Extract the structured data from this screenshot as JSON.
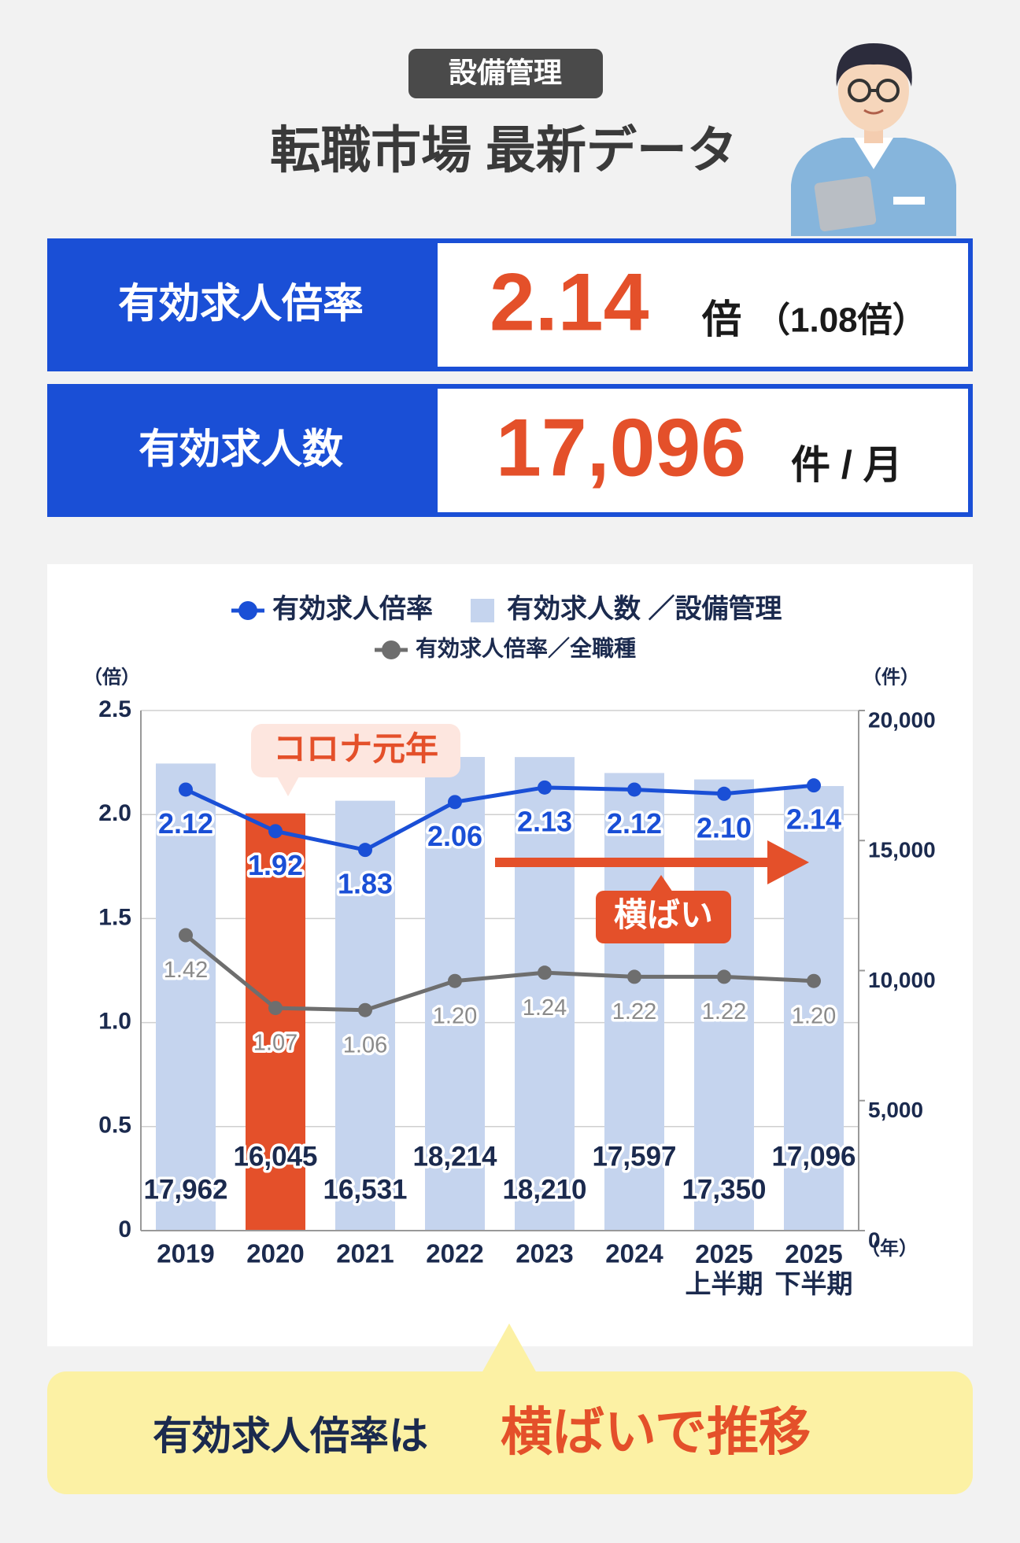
{
  "header": {
    "tag": "設備管理",
    "title": "転職市場 最新データ"
  },
  "stats": [
    {
      "label": "有効求人倍率",
      "value": "2.14",
      "unit": "倍",
      "note": "（1.08倍）"
    },
    {
      "label": "有効求人数",
      "value": "17,096",
      "unit": "件 / 月"
    }
  ],
  "chart_data": {
    "type": "bar",
    "categories": [
      "2019",
      "2020",
      "2021",
      "2022",
      "2023",
      "2024",
      "2025\n上半期",
      "2025\n下半期"
    ],
    "x_label": "（年）",
    "y_label": "（倍）",
    "y2_label": "（件）",
    "ylim": [
      0,
      2.5
    ],
    "yticks": [
      0,
      0.5,
      {
        "value": 1,
        "label": "1.0"
      },
      1.5,
      {
        "value": 2,
        "label": "2.0"
      },
      2.5
    ],
    "y2lim": [
      0,
      20000
    ],
    "y2ticks": [
      0,
      {
        "value": 5000,
        "label": "5,000"
      },
      {
        "value": 10000,
        "label": "10,000"
      },
      {
        "value": 15000,
        "label": "15,000"
      },
      {
        "value": 20000,
        "label": "20,000"
      }
    ],
    "grid": true,
    "series": [
      {
        "name": "有効求人数 ／設備管理",
        "type": "bar",
        "axis": "y2",
        "color": "#c5d4ee",
        "colors": [
          "#c5d4ee",
          "#e4502a",
          "#c5d4ee",
          "#c5d4ee",
          "#c5d4ee",
          "#c5d4ee",
          "#c5d4ee",
          "#c5d4ee"
        ],
        "values": [
          17962,
          16045,
          16531,
          18214,
          18210,
          17597,
          17350,
          17096
        ],
        "value_labels": [
          "17,962",
          "16,045",
          "16,531",
          "18,214",
          "18,210",
          "17,597",
          "17,350",
          "17,096"
        ]
      },
      {
        "name": "有効求人倍率",
        "type": "line",
        "color": "#1a4fd6",
        "values": [
          2.12,
          1.92,
          1.83,
          2.06,
          2.13,
          2.12,
          2.1,
          2.14
        ],
        "value_labels": [
          "2.12",
          "1.92",
          "1.83",
          "2.06",
          "2.13",
          "2.12",
          "2.10",
          "2.14"
        ]
      },
      {
        "name": "有効求人倍率／全職種",
        "type": "line",
        "color": "#6e6e6e",
        "values": [
          1.42,
          1.07,
          1.06,
          1.2,
          1.24,
          1.22,
          1.22,
          1.2
        ],
        "value_labels": [
          "1.42",
          "1.07",
          "1.06",
          "1.20",
          "1.24",
          "1.22",
          "1.22",
          "1.20"
        ]
      }
    ],
    "annotations": [
      "コロナ元年",
      "横ばい"
    ]
  },
  "footer": {
    "text": "有効求人倍率は",
    "highlight": "横ばいで推移"
  }
}
